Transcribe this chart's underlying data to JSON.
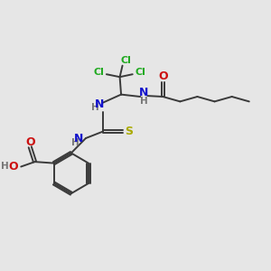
{
  "background_color": "#e6e6e6",
  "bond_color": "#3a3a3a",
  "colors": {
    "Cl": "#22aa22",
    "N": "#1111cc",
    "O": "#cc1111",
    "S": "#aaaa00",
    "H": "#777777"
  },
  "figsize": [
    3.0,
    3.0
  ],
  "dpi": 100,
  "lw": 1.4,
  "fs": 8.5,
  "fs_small": 7.5
}
